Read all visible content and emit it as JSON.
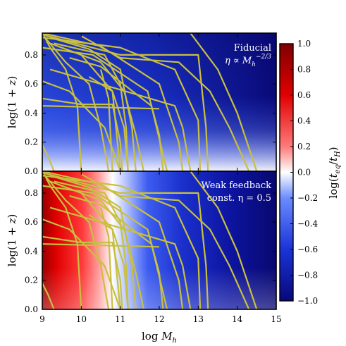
{
  "chart_data": [
    {
      "type": "heatmap",
      "panel": "top",
      "annotation_lines": [
        "Fiducial",
        "η ∝ M_h^(−2/3)"
      ],
      "xlabel": "",
      "ylabel": "log(1+z)",
      "xlim": [
        9,
        15
      ],
      "ylim": [
        0,
        0.95
      ],
      "yticks": [
        0.0,
        0.2,
        0.4,
        0.6,
        0.8
      ],
      "ytick_labels": [
        "0.0",
        "0.2",
        "0.4",
        "0.6",
        "0.8"
      ],
      "background_trend": "log(t_eq/t_H) about −0.1 at z=0 near logM=9, decreasing to about −0.9 toward high redshift and high mass",
      "tracks": [
        {
          "x": [
            9.05,
            9.2,
            9.6,
            9.9,
            10.0
          ],
          "y": [
            0.93,
            0.85,
            0.7,
            0.45,
            0.0
          ]
        },
        {
          "x": [
            9.1,
            9.6,
            10.2,
            10.5,
            10.7
          ],
          "y": [
            0.91,
            0.75,
            0.6,
            0.3,
            0.0
          ]
        },
        {
          "x": [
            9.1,
            10.0,
            10.8,
            11.1,
            11.2
          ],
          "y": [
            0.89,
            0.8,
            0.55,
            0.3,
            0.0
          ]
        },
        {
          "x": [
            9.2,
            10.2,
            11.0,
            11.3,
            11.4
          ],
          "y": [
            0.92,
            0.84,
            0.7,
            0.3,
            0.0
          ]
        },
        {
          "x": [
            9.3,
            10.6,
            11.0,
            11.15,
            11.2
          ],
          "y": [
            0.88,
            0.8,
            0.6,
            0.3,
            0.0
          ]
        },
        {
          "x": [
            9.4,
            10.5,
            11.1,
            11.4,
            11.6
          ],
          "y": [
            0.86,
            0.75,
            0.55,
            0.25,
            0.0
          ]
        },
        {
          "x": [
            9.0,
            10.0,
            10.8,
            11.0,
            11.05
          ],
          "y": [
            0.5,
            0.46,
            0.46,
            0.2,
            0.0
          ]
        },
        {
          "x": [
            9.0,
            9.7,
            10.6,
            11.0
          ],
          "y": [
            0.62,
            0.55,
            0.3,
            0.0
          ]
        },
        {
          "x": [
            9.0,
            10.3,
            11.7,
            12.0,
            12.1
          ],
          "y": [
            0.85,
            0.8,
            0.55,
            0.25,
            0.0
          ]
        },
        {
          "x": [
            9.7,
            10.5,
            11.8,
            12.2
          ],
          "y": [
            0.78,
            0.72,
            0.45,
            0.0
          ]
        },
        {
          "x": [
            9.0,
            11.0,
            12.4,
            13.0,
            13.05
          ],
          "y": [
            0.92,
            0.85,
            0.7,
            0.35,
            0.0
          ]
        },
        {
          "x": [
            9.0,
            10.5,
            12.0,
            12.5,
            12.6
          ],
          "y": [
            0.95,
            0.86,
            0.6,
            0.2,
            0.0
          ]
        },
        {
          "x": [
            9.2,
            10.5,
            12.4,
            12.6,
            12.8
          ],
          "y": [
            0.7,
            0.6,
            0.45,
            0.3,
            0.0
          ]
        },
        {
          "x": [
            9.0,
            11.0,
            13.0,
            13.2,
            13.25
          ],
          "y": [
            0.94,
            0.8,
            0.8,
            0.3,
            0.0
          ]
        },
        {
          "x": [
            10.0,
            11.0,
            12.5,
            13.3,
            13.8,
            14.3
          ],
          "y": [
            0.93,
            0.78,
            0.75,
            0.55,
            0.3,
            0.0
          ]
        },
        {
          "x": [
            12.8,
            13.5,
            14.0,
            14.5
          ],
          "y": [
            0.95,
            0.7,
            0.4,
            0.0
          ]
        },
        {
          "x": [
            9.0,
            10.5,
            12.0
          ],
          "y": [
            0.45,
            0.44,
            0.43
          ]
        },
        {
          "x": [
            9.0,
            9.15,
            9.3
          ],
          "y": [
            0.18,
            0.1,
            0.0
          ]
        },
        {
          "x": [
            10.5,
            10.7,
            10.8
          ],
          "y": [
            0.7,
            0.5,
            0.0
          ]
        },
        {
          "x": [
            10.2,
            10.8,
            11.0
          ],
          "y": [
            0.65,
            0.55,
            0.0
          ]
        }
      ]
    },
    {
      "type": "heatmap",
      "panel": "bottom",
      "annotation_lines": [
        "Weak feedback",
        "const. η = 0.5"
      ],
      "xlabel": "log M_h",
      "ylabel": "log(1+z)",
      "xlim": [
        9,
        15
      ],
      "ylim": [
        0,
        0.95
      ],
      "xticks": [
        9,
        10,
        11,
        12,
        13,
        14,
        15
      ],
      "xtick_labels": [
        "9",
        "10",
        "11",
        "12",
        "13",
        "14",
        "15"
      ],
      "yticks": [
        0.0,
        0.2,
        0.4,
        0.6,
        0.8
      ],
      "ytick_labels": [
        "0.0",
        "0.2",
        "0.4",
        "0.6",
        "0.8"
      ],
      "background_trend": "log(t_eq/t_H) near +1 at low mass, crossing 0 around logM≈11, falling to about −0.9 at high mass",
      "tracks": "same as top panel"
    }
  ],
  "colorbar": {
    "label": "log(t_eq/t_H)",
    "range": [
      -1.0,
      1.0
    ],
    "ticks": [
      1.0,
      0.8,
      0.6,
      0.4,
      0.2,
      0.0,
      -0.2,
      -0.4,
      -0.6,
      -0.8,
      -1.0
    ],
    "tick_labels": [
      "1.0",
      "0.8",
      "0.6",
      "0.4",
      "0.2",
      "0.0",
      "−0.2",
      "−0.4",
      "−0.6",
      "−0.8",
      "−1.0"
    ],
    "colormap": [
      "#08087a",
      "#1a33d8",
      "#6a8cff",
      "#ffffff",
      "#ff5a5a",
      "#e00000",
      "#800000"
    ]
  },
  "track_color": "#c8c040"
}
